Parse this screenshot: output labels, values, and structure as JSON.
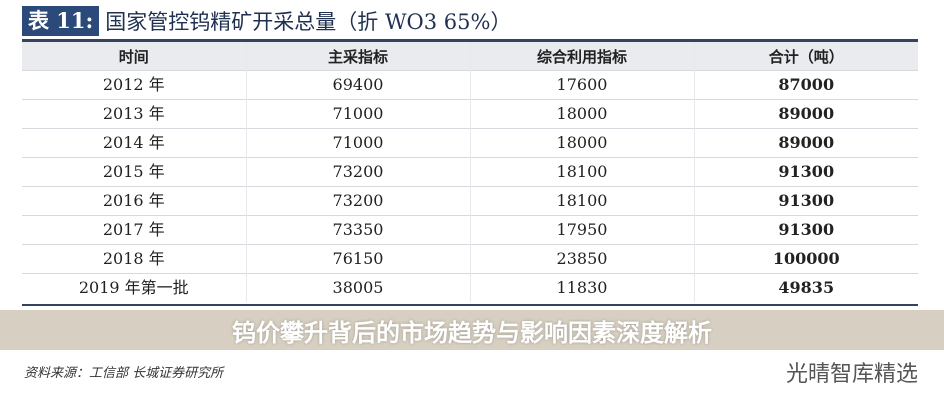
{
  "title": {
    "tag": "表 11:",
    "text": "国家管控钨精矿开采总量（折 WO3 65%）"
  },
  "table": {
    "headers": [
      "时间",
      "主采指标",
      "综合利用指标",
      "合计（吨）"
    ],
    "rows": [
      [
        "2012 年",
        "69400",
        "17600",
        "87000"
      ],
      [
        "2013 年",
        "71000",
        "18000",
        "89000"
      ],
      [
        "2014 年",
        "71000",
        "18000",
        "89000"
      ],
      [
        "2015 年",
        "73200",
        "18100",
        "91300"
      ],
      [
        "2016 年",
        "73200",
        "18100",
        "91300"
      ],
      [
        "2017 年",
        "73350",
        "17950",
        "91300"
      ],
      [
        "2018 年",
        "76150",
        "23850",
        "100000"
      ],
      [
        "2019 年第一批",
        "38005",
        "11830",
        "49835"
      ]
    ]
  },
  "source": "资料来源：工信部 长城证券研究所",
  "banner": "钨价攀升背后的市场趋势与影响因素深度解析",
  "watermark": "光晴智库精选"
}
